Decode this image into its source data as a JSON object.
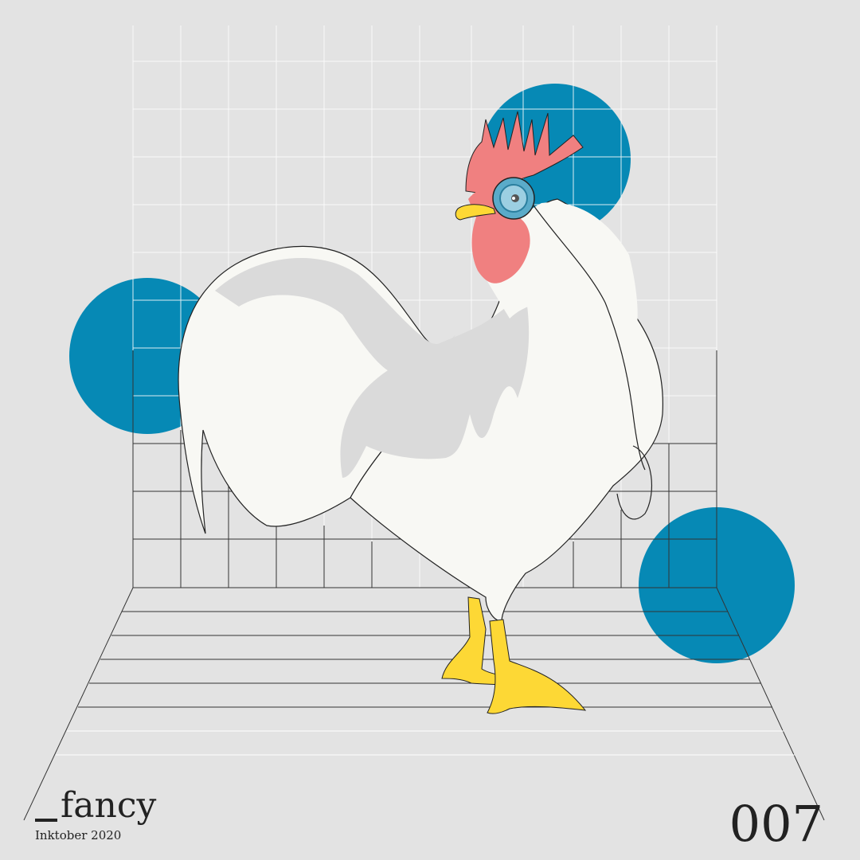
{
  "caption": {
    "prompt_word": "fancy",
    "subtitle": "Inktober 2020",
    "number": "007"
  },
  "colors": {
    "background": "#e3e3e3",
    "circle_blue": "#0689b5",
    "comb_red": "#f08080",
    "beak_feet_yellow": "#fdd835",
    "body_white": "#f8f8f4",
    "shadow_gray": "#dadada",
    "monocle_blue": "#5aabc9",
    "ink": "#222222"
  },
  "illustration": {
    "subject": "rooster-with-monocle",
    "background_elements": [
      "grid-wall",
      "grid-floor",
      "blue-circles"
    ]
  }
}
